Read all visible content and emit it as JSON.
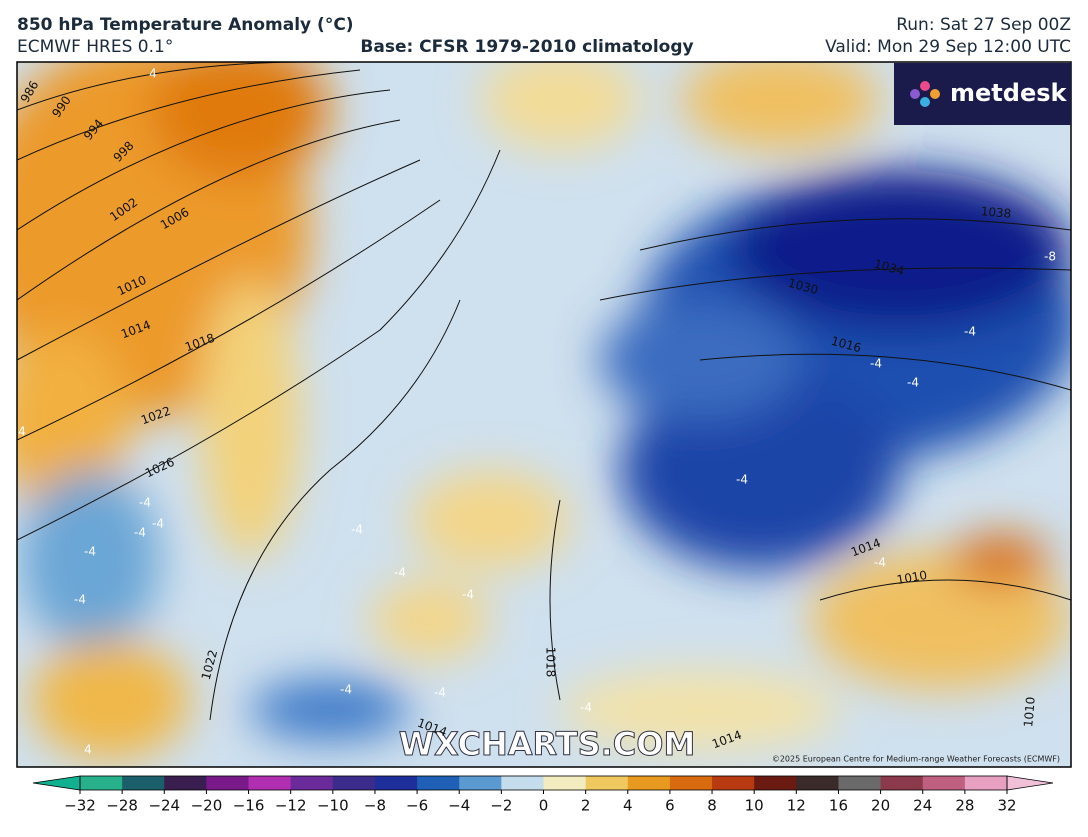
{
  "header": {
    "title": "850 hPa Temperature Anomaly (°C)",
    "model": "ECMWF HRES 0.1°",
    "base": "Base: CFSR 1979-2010 climatology",
    "run": "Run: Sat 27 Sep 00Z",
    "valid": "Valid: Mon 29 Sep 12:00 UTC"
  },
  "map": {
    "logo": "metdesk",
    "watermark": "WXCHARTS.COM",
    "copyright": "©2025 European Centre for Medium-range Weather Forecasts (ECMWF)",
    "isobar_labels": [
      "986",
      "990",
      "994",
      "998",
      "1002",
      "1006",
      "1010",
      "1014",
      "1018",
      "1022",
      "1026",
      "1022",
      "1018",
      "1014",
      "1014",
      "1010",
      "1014",
      "1016",
      "1030",
      "1034",
      "1038",
      "1010"
    ],
    "anomaly_labels": [
      "4",
      "4",
      "-4",
      "-4",
      "-4",
      "-4",
      "-4",
      "-4",
      "-4",
      "-4",
      "-4",
      "-4",
      "-4",
      "-4",
      "-4",
      "-4",
      "-4",
      "-4",
      "-8",
      "4"
    ]
  },
  "colorbar": {
    "ticks": [
      {
        "value": -32,
        "label": "−32"
      },
      {
        "value": -28,
        "label": "−28"
      },
      {
        "value": -24,
        "label": "−24"
      },
      {
        "value": -20,
        "label": "−20"
      },
      {
        "value": -16,
        "label": "−16"
      },
      {
        "value": -12,
        "label": "−12"
      },
      {
        "value": -10,
        "label": "−10"
      },
      {
        "value": -8,
        "label": "−8"
      },
      {
        "value": -6,
        "label": "−6"
      },
      {
        "value": -4,
        "label": "−4"
      },
      {
        "value": -2,
        "label": "−2"
      },
      0,
      2,
      4,
      6,
      8,
      10,
      12,
      16,
      20,
      24,
      28,
      32
    ],
    "colors": [
      "#27b08a",
      "#1a5f6a",
      "#3a1e4f",
      "#7a1a8a",
      "#b02fb0",
      "#6a2a9a",
      "#3b2b8a",
      "#1e2f9c",
      "#1f5fb5",
      "#5a9ad0",
      "#c5dcec",
      "#f3ecc0",
      "#f0c860",
      "#e89a20",
      "#d86a10",
      "#b83a10",
      "#6a1a10",
      "#3a2a2a",
      "#6a6a6a",
      "#8a3a4a",
      "#c06080",
      "#e8a0c0"
    ],
    "low_color": "#10b090",
    "high_color": "#f0c0d8"
  }
}
